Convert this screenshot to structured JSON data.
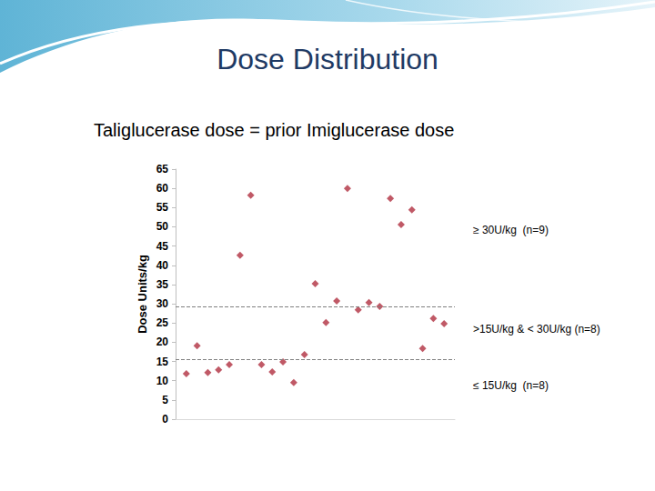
{
  "chart_data": {
    "type": "scatter",
    "title": "Dose Distribution",
    "subtitle": "Taliglucerase dose = prior Imiglucerase dose",
    "y_label": "Dose Units/kg",
    "x": [
      1,
      2,
      3,
      4,
      5,
      6,
      7,
      8,
      9,
      10,
      11,
      12,
      13,
      14,
      15,
      16,
      17,
      18,
      19,
      20,
      21,
      22,
      23,
      24,
      25
    ],
    "values": [
      11.8,
      19.1,
      12.1,
      12.8,
      14.2,
      42.6,
      58.2,
      14.2,
      12.3,
      14.9,
      9.5,
      16.8,
      35.2,
      25.1,
      30.7,
      60.0,
      28.4,
      30.3,
      29.3,
      57.4,
      50.6,
      54.4,
      18.4,
      26.2,
      24.8
    ],
    "color": "#b03040",
    "marker": "diamond",
    "xlim": [
      0,
      26
    ],
    "ylim": [
      0,
      65
    ],
    "yticks": [
      0,
      5,
      10,
      15,
      20,
      25,
      30,
      35,
      40,
      45,
      50,
      55,
      60,
      65
    ],
    "grid": false,
    "tick_labels": "y",
    "reference_lines": [
      29.3,
      15.6
    ],
    "line_style": "dashed",
    "annotations": [
      "≥ 30U/kg  (n=9)",
      ">15U/kg & < 30U/kg (n=8)",
      "≤ 15U/kg  (n=8)"
    ]
  }
}
